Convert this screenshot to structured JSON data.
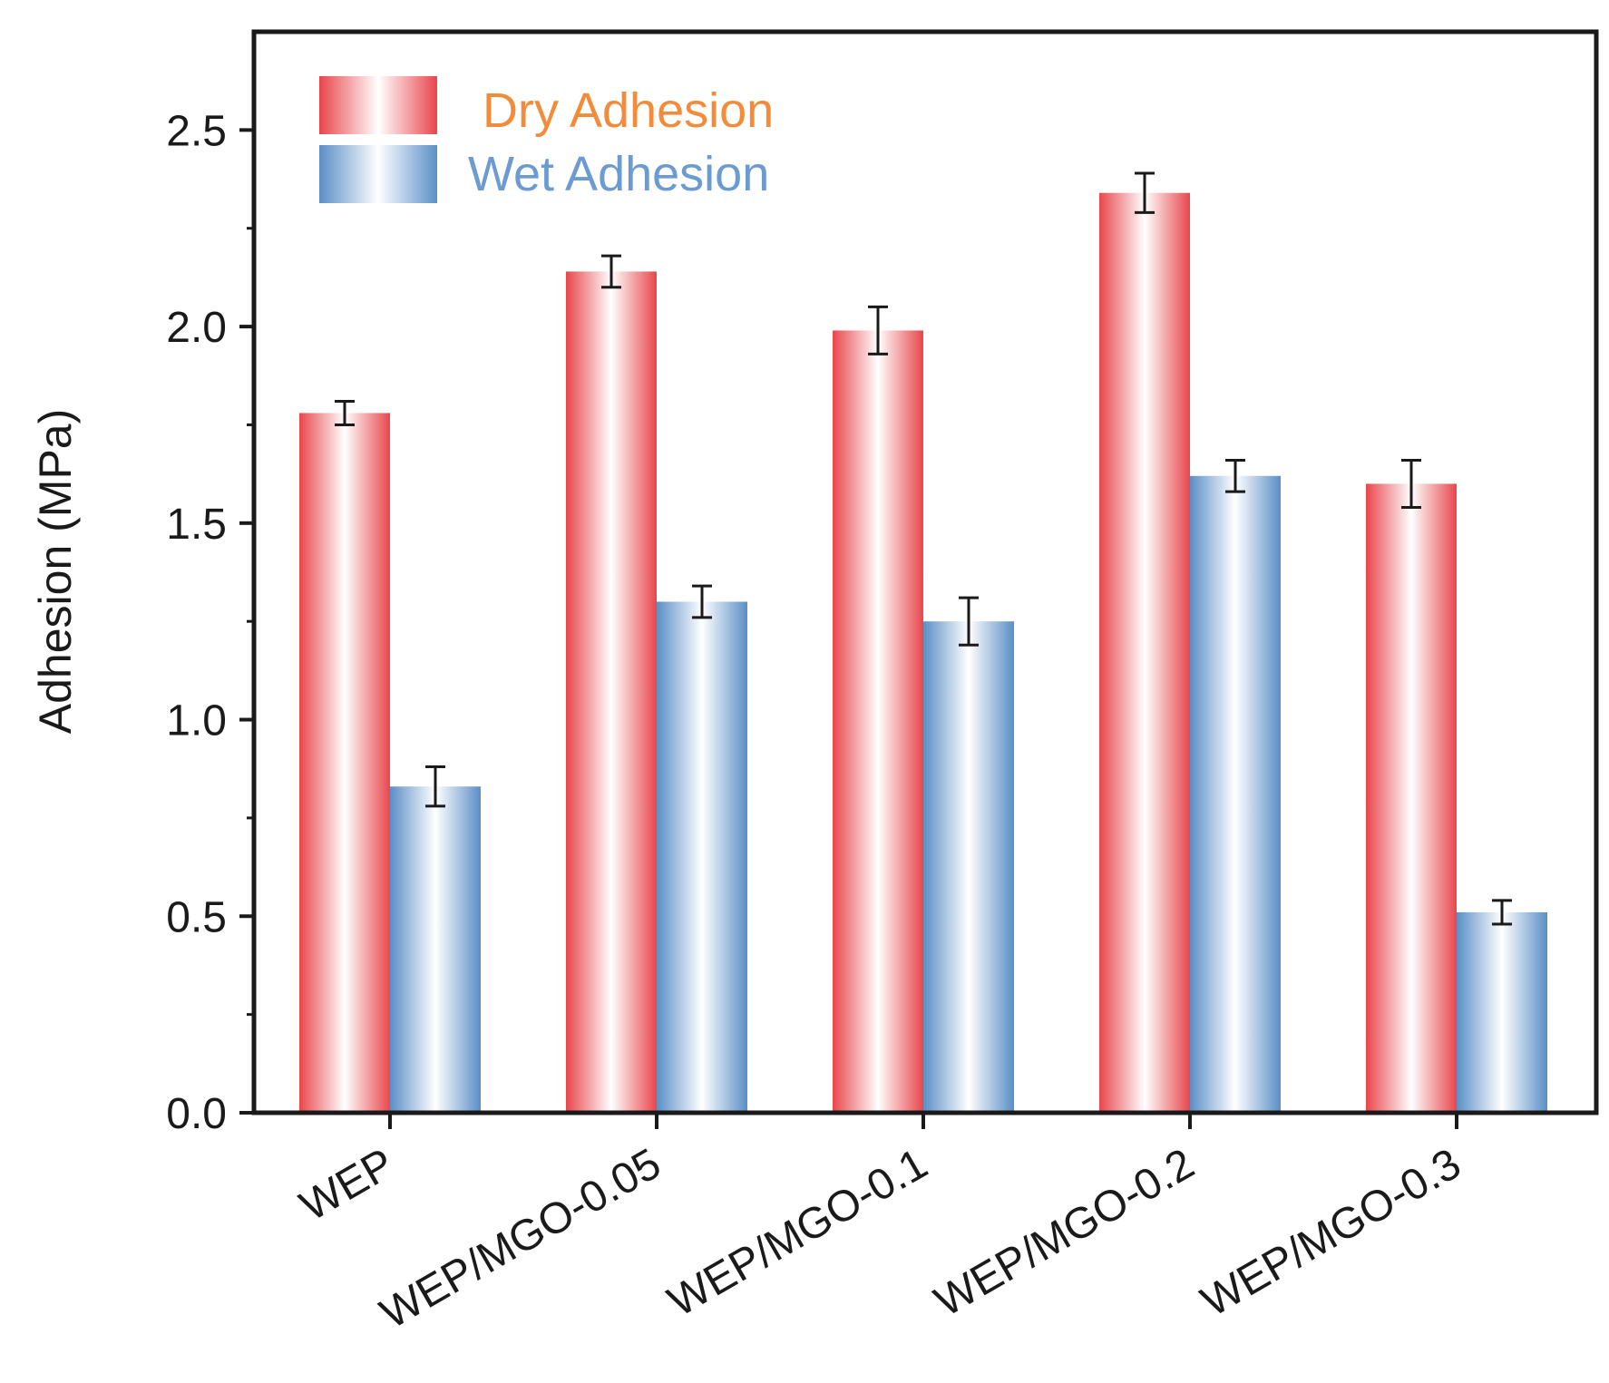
{
  "chart_data": {
    "type": "bar",
    "title": "",
    "xlabel": "",
    "ylabel": "Adhesion (MPa)",
    "ylim": [
      0,
      2.75
    ],
    "yticks": [
      0.0,
      0.5,
      1.0,
      1.5,
      2.0,
      2.5
    ],
    "ytick_labels": [
      "0.0",
      "0.5",
      "1.0",
      "1.5",
      "2.0",
      "2.5"
    ],
    "categories": [
      "WEP",
      "WEP/MGO-0.05",
      "WEP/MGO-0.1",
      "WEP/MGO-0.2",
      "WEP/MGO-0.3"
    ],
    "series": [
      {
        "name": "Dry Adhesion",
        "color": "#e8464c",
        "label_color": "#f28c3a",
        "values": [
          1.78,
          2.14,
          1.99,
          2.34,
          1.6
        ],
        "errors": [
          0.03,
          0.04,
          0.06,
          0.05,
          0.06
        ]
      },
      {
        "name": "Wet Adhesion",
        "color": "#5b8fc6",
        "label_color": "#6b9bd1",
        "values": [
          0.83,
          1.3,
          1.25,
          1.62,
          0.51
        ],
        "errors": [
          0.05,
          0.04,
          0.06,
          0.04,
          0.03
        ]
      }
    ],
    "legend_position": "top-left",
    "grid": false
  }
}
